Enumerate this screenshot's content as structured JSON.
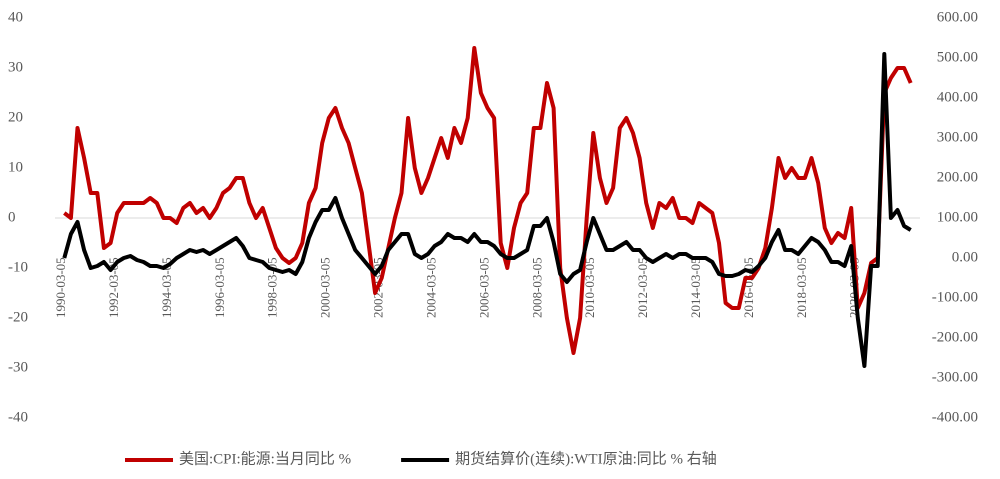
{
  "chart_data": {
    "type": "line",
    "legend": "bottom",
    "grid": false,
    "xlim": [
      1989.9,
      2022.6
    ],
    "xticks": [
      {
        "value": 1990.17,
        "label": "1990-03-05"
      },
      {
        "value": 1992.17,
        "label": "1992-03-05"
      },
      {
        "value": 1994.17,
        "label": "1994-03-05"
      },
      {
        "value": 1996.17,
        "label": "1996-03-05"
      },
      {
        "value": 1998.17,
        "label": "1998-03-05"
      },
      {
        "value": 2000.17,
        "label": "2000-03-05"
      },
      {
        "value": 2002.17,
        "label": "2002-03-05"
      },
      {
        "value": 2004.17,
        "label": "2004-03-05"
      },
      {
        "value": 2006.17,
        "label": "2006-03-05"
      },
      {
        "value": 2008.17,
        "label": "2008-03-05"
      },
      {
        "value": 2010.17,
        "label": "2010-03-05"
      },
      {
        "value": 2012.17,
        "label": "2012-03-05"
      },
      {
        "value": 2014.17,
        "label": "2014-03-05"
      },
      {
        "value": 2016.17,
        "label": "2016-03-05"
      },
      {
        "value": 2018.17,
        "label": "2018-03-05"
      },
      {
        "value": 2020.17,
        "label": "2020-03-05"
      }
    ],
    "ylim": [
      -40,
      40
    ],
    "yticks": [
      -40,
      -30,
      -20,
      -10,
      0,
      10,
      20,
      30,
      40
    ],
    "y2lim": [
      -400,
      600
    ],
    "y2ticks": [
      {
        "value": -400,
        "label": "-400.00"
      },
      {
        "value": -300,
        "label": "-300.00"
      },
      {
        "value": -200,
        "label": "-200.00"
      },
      {
        "value": -100,
        "label": "-100.00"
      },
      {
        "value": 0,
        "label": "0.00"
      },
      {
        "value": 100,
        "label": "100.00"
      },
      {
        "value": 200,
        "label": "200.00"
      },
      {
        "value": 300,
        "label": "300.00"
      },
      {
        "value": 400,
        "label": "400.00"
      },
      {
        "value": 500,
        "label": "500.00"
      },
      {
        "value": 600,
        "label": "600.00"
      }
    ],
    "x": [
      1990.25,
      1990.5,
      1990.75,
      1991,
      1991.25,
      1991.5,
      1991.75,
      1992,
      1992.25,
      1992.5,
      1992.75,
      1993,
      1993.25,
      1993.5,
      1993.75,
      1994,
      1994.25,
      1994.5,
      1994.75,
      1995,
      1995.25,
      1995.5,
      1995.75,
      1996,
      1996.25,
      1996.5,
      1996.75,
      1997,
      1997.25,
      1997.5,
      1997.75,
      1998,
      1998.25,
      1998.5,
      1998.75,
      1999,
      1999.25,
      1999.5,
      1999.75,
      2000,
      2000.25,
      2000.5,
      2000.75,
      2001,
      2001.25,
      2001.5,
      2001.75,
      2002,
      2002.25,
      2002.5,
      2002.75,
      2003,
      2003.25,
      2003.5,
      2003.75,
      2004,
      2004.25,
      2004.5,
      2004.75,
      2005,
      2005.25,
      2005.5,
      2005.75,
      2006,
      2006.25,
      2006.5,
      2006.75,
      2007,
      2007.25,
      2007.5,
      2007.75,
      2008,
      2008.25,
      2008.5,
      2008.75,
      2009,
      2009.25,
      2009.5,
      2009.75,
      2010,
      2010.25,
      2010.5,
      2010.75,
      2011,
      2011.25,
      2011.5,
      2011.75,
      2012,
      2012.25,
      2012.5,
      2012.75,
      2013,
      2013.25,
      2013.5,
      2013.75,
      2014,
      2014.25,
      2014.5,
      2014.75,
      2015,
      2015.25,
      2015.5,
      2015.75,
      2016,
      2016.25,
      2016.5,
      2016.75,
      2017,
      2017.25,
      2017.5,
      2017.75,
      2018,
      2018.25,
      2018.5,
      2018.75,
      2019,
      2019.25,
      2019.5,
      2019.75,
      2020,
      2020.25,
      2020.5,
      2020.75,
      2021,
      2021.25,
      2021.5,
      2021.75,
      2022,
      2022.25
    ],
    "series": [
      {
        "name": "美国:CPI:能源:当月同比 %",
        "color": "#c00000",
        "values": [
          1,
          0,
          18,
          12,
          5,
          5,
          -6,
          -5,
          1,
          3,
          3,
          3,
          3,
          4,
          3,
          0,
          0,
          -1,
          2,
          3,
          1,
          2,
          0,
          2,
          5,
          6,
          8,
          8,
          3,
          0,
          2,
          -2,
          -6,
          -8,
          -9,
          -8,
          -5,
          3,
          6,
          15,
          20,
          22,
          18,
          15,
          10,
          5,
          -5,
          -15,
          -12,
          -6,
          0,
          5,
          20,
          10,
          5,
          8,
          12,
          16,
          12,
          18,
          15,
          20,
          34,
          25,
          22,
          20,
          -5,
          -10,
          -2,
          3,
          5,
          18,
          18,
          27,
          22,
          -10,
          -20,
          -27,
          -20,
          0,
          17,
          8,
          3,
          6,
          18,
          20,
          17,
          12,
          3,
          -2,
          3,
          2,
          4,
          0,
          0,
          -1,
          3,
          2,
          1,
          -5,
          -17,
          -18,
          -18,
          -12,
          -12,
          -10,
          -6,
          2,
          12,
          8,
          10,
          8,
          8,
          12,
          7,
          -2,
          -5,
          -3,
          -4,
          2,
          -18,
          -15,
          -9,
          -8,
          25,
          28,
          30,
          30,
          27
        ]
      },
      {
        "name": "期货结算价(连续):WTI原油:同比 % 右轴",
        "color": "#000000",
        "axis": "y2",
        "values": [
          0,
          60,
          90,
          20,
          -25,
          -20,
          -10,
          -30,
          -10,
          0,
          5,
          -5,
          -10,
          -20,
          -20,
          -25,
          -15,
          0,
          10,
          20,
          15,
          20,
          10,
          20,
          30,
          40,
          50,
          30,
          0,
          -5,
          -10,
          -25,
          -30,
          -35,
          -30,
          -40,
          -10,
          50,
          90,
          120,
          120,
          150,
          100,
          60,
          20,
          0,
          -20,
          -40,
          -20,
          20,
          40,
          60,
          60,
          10,
          0,
          10,
          30,
          40,
          60,
          50,
          50,
          40,
          60,
          40,
          40,
          30,
          10,
          0,
          0,
          10,
          20,
          80,
          80,
          100,
          40,
          -40,
          -60,
          -40,
          -30,
          40,
          100,
          60,
          20,
          20,
          30,
          40,
          20,
          20,
          0,
          -10,
          0,
          10,
          0,
          10,
          10,
          0,
          0,
          0,
          -10,
          -40,
          -45,
          -45,
          -40,
          -30,
          -35,
          -20,
          0,
          40,
          70,
          20,
          20,
          10,
          30,
          50,
          40,
          20,
          -10,
          -10,
          -20,
          30,
          -150,
          -270,
          -20,
          -20,
          510,
          100,
          120,
          80,
          70
        ]
      }
    ]
  }
}
